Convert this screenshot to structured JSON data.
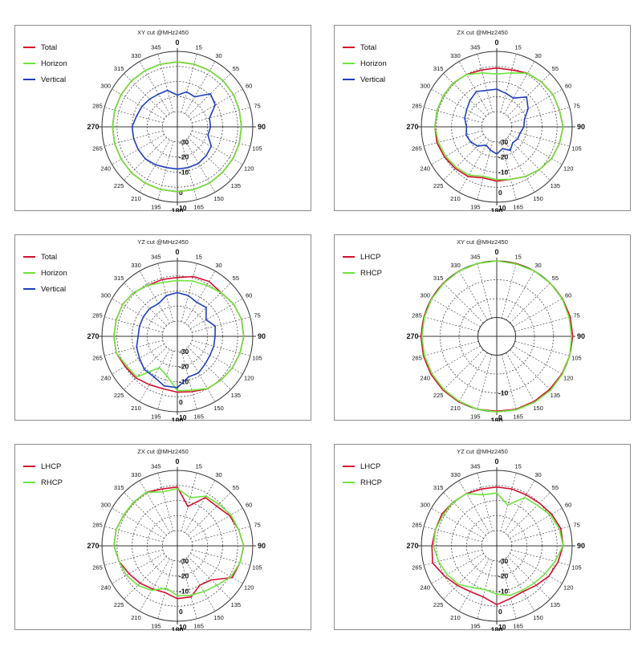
{
  "colors": {
    "red": "#d40f2e",
    "green": "#6ee43c",
    "blue": "#1f3fbf",
    "grid": "#333333"
  },
  "chart_data": [
    {
      "type": "polar",
      "title": "XY cut @MHz2450",
      "theta_labels": [
        "0",
        "15",
        "30",
        "55",
        "60",
        "75",
        "90",
        "105",
        "120",
        "135",
        "150",
        "165",
        "180",
        "195",
        "210",
        "225",
        "240",
        "265",
        "270",
        "285",
        "300",
        "315",
        "330",
        "345"
      ],
      "r_labels": [
        "-30",
        "-20",
        "-10",
        "0",
        "10"
      ],
      "series": [
        {
          "name": "Total",
          "color": "red",
          "values": [
            3,
            3,
            3,
            3,
            3,
            2.5,
            2.5,
            2.5,
            2.5,
            2.5,
            3,
            3,
            3,
            3,
            3,
            3,
            3,
            3,
            3,
            3,
            3,
            3,
            3,
            3
          ]
        },
        {
          "name": "Horizon",
          "color": "green",
          "values": [
            3,
            3,
            3,
            3,
            3,
            2.5,
            2.5,
            2.5,
            2.5,
            2.5,
            3,
            3,
            3,
            3,
            3,
            3,
            3,
            3,
            3,
            3,
            3,
            3,
            3,
            3
          ]
        },
        {
          "name": "Vertical",
          "color": "blue",
          "values": [
            -19,
            -16,
            -17,
            -9,
            -11,
            -18,
            -18,
            -19,
            -14,
            -13,
            -12,
            -12,
            -12,
            -12,
            -11,
            -10,
            -10,
            -10,
            -10,
            -12,
            -13,
            -14,
            -15,
            -15
          ]
        }
      ]
    },
    {
      "type": "polar",
      "title": "ZX cut @MHz2450",
      "theta_labels": [
        "0",
        "15",
        "30",
        "55",
        "60",
        "75",
        "90",
        "105",
        "120",
        "135",
        "150",
        "165",
        "180",
        "195",
        "210",
        "225",
        "240",
        "265",
        "270",
        "285",
        "300",
        "315",
        "330",
        "345"
      ],
      "r_labels": [
        "-30",
        "-20",
        "-10",
        "0",
        "10"
      ],
      "series": [
        {
          "name": "Total",
          "color": "red",
          "values": [
            -1,
            -1,
            1,
            2,
            3,
            3,
            4,
            3,
            2,
            0,
            -2,
            -4,
            -4,
            -5,
            -2,
            -1,
            0,
            1,
            1,
            1,
            1,
            1,
            0,
            -1
          ]
        },
        {
          "name": "Horizon",
          "color": "green",
          "values": [
            -5,
            -3,
            1,
            2,
            3,
            3,
            4,
            3,
            2,
            0,
            -2,
            -4,
            -5,
            -6,
            -3,
            -2,
            -1,
            0,
            1,
            1,
            1,
            1,
            0,
            -3
          ]
        },
        {
          "name": "Vertical",
          "color": "blue",
          "values": [
            -15,
            -17,
            -18,
            -12,
            -16,
            -21,
            -22,
            -24,
            -24,
            -25,
            -22,
            -25,
            -22,
            -24,
            -26,
            -22,
            -20,
            -19,
            -20,
            -18,
            -17,
            -15,
            -13,
            -15
          ]
        }
      ]
    },
    {
      "type": "polar",
      "title": "YZ cut @MHz2450",
      "theta_labels": [
        "0",
        "15",
        "30",
        "55",
        "60",
        "75",
        "90",
        "105",
        "120",
        "135",
        "150",
        "165",
        "180",
        "195",
        "210",
        "225",
        "240",
        "265",
        "270",
        "285",
        "300",
        "315",
        "330",
        "345"
      ],
      "r_labels": [
        "-30",
        "-20",
        "-10",
        "0",
        "10"
      ],
      "series": [
        {
          "name": "Total",
          "color": "red",
          "values": [
            -1,
            1,
            2,
            1,
            3,
            4,
            4,
            3,
            2,
            1,
            0,
            -2,
            -3,
            -4,
            -3,
            -1,
            0,
            2,
            2,
            2,
            2,
            1,
            -1,
            -1
          ]
        },
        {
          "name": "Horizon",
          "color": "green",
          "values": [
            -3,
            -2,
            -1,
            1,
            3,
            4,
            4,
            3,
            2,
            1,
            0,
            -3,
            -4,
            -13,
            -16,
            -2,
            -1,
            2,
            2,
            2,
            2,
            1,
            -1,
            -3
          ]
        },
        {
          "name": "Vertical",
          "color": "blue",
          "values": [
            -11,
            -12,
            -14,
            -13,
            -18,
            -14,
            -15,
            -15,
            -15,
            -14,
            -12,
            -12,
            -6,
            -6,
            -9,
            -9,
            -11,
            -12,
            -14,
            -14,
            -14,
            -14,
            -15,
            -12
          ]
        }
      ]
    },
    {
      "type": "polar",
      "title": "XY cut @MHz2450",
      "theta_labels": [
        "0",
        "15",
        "30",
        "55",
        "60",
        "75",
        "90",
        "105",
        "120",
        "135",
        "150",
        "165",
        "180",
        "195",
        "210",
        "225",
        "240",
        "265",
        "270",
        "285",
        "300",
        "315",
        "330",
        "345"
      ],
      "r_labels": [
        "-10",
        "0"
      ],
      "series": [
        {
          "name": "LHCP",
          "color": "red",
          "values": [
            0.0,
            0.0,
            0.0,
            0.0,
            0.2,
            0.3,
            0.3,
            0.0,
            -0.1,
            -0.3,
            -0.2,
            0.0,
            -0.3,
            0.0,
            0.2,
            0.3,
            0.3,
            0.2,
            0.2,
            0.0,
            0.0,
            0.0,
            0.0,
            0.0
          ]
        },
        {
          "name": "RHCP",
          "color": "green",
          "values": [
            0.0,
            -0.3,
            0.0,
            0.0,
            0.0,
            -0.3,
            -0.3,
            0.0,
            0.2,
            0.4,
            0.3,
            0.3,
            0.1,
            0.0,
            -0.2,
            -0.2,
            -0.3,
            -0.3,
            -0.3,
            -0.3,
            -0.2,
            -0.2,
            0.0,
            0.0
          ]
        }
      ]
    },
    {
      "type": "polar",
      "title": "ZX cut @MHz2450",
      "theta_labels": [
        "0",
        "15",
        "30",
        "55",
        "60",
        "75",
        "90",
        "105",
        "120",
        "135",
        "150",
        "165",
        "180",
        "195",
        "210",
        "225",
        "240",
        "265",
        "270",
        "285",
        "300",
        "315",
        "330",
        "345"
      ],
      "r_labels": [
        "-30",
        "-20",
        "-10",
        "0",
        "10"
      ],
      "series": [
        {
          "name": "LHCP",
          "color": "red",
          "values": [
            -1,
            -13,
            -3,
            -3,
            0,
            2,
            4,
            3,
            2,
            -8,
            -10,
            -5,
            -5,
            -8,
            -7,
            -5,
            -3,
            0,
            2,
            2,
            1,
            1,
            1,
            -1
          ]
        },
        {
          "name": "RHCP",
          "color": "green",
          "values": [
            -2,
            -7,
            -2,
            -1,
            1,
            2,
            4,
            3,
            1,
            -3,
            -5,
            -6,
            -7,
            -11,
            -6,
            -3,
            -1,
            0,
            2,
            2,
            1,
            1,
            1,
            -3
          ]
        }
      ]
    },
    {
      "type": "polar",
      "title": "YZ cut @MHz2450",
      "theta_labels": [
        "0",
        "15",
        "30",
        "55",
        "60",
        "75",
        "90",
        "105",
        "120",
        "135",
        "150",
        "165",
        "180",
        "195",
        "210",
        "225",
        "240",
        "265",
        "270",
        "285",
        "300",
        "315",
        "330",
        "345"
      ],
      "r_labels": [
        "-30",
        "-20",
        "-10",
        "0",
        "10"
      ],
      "series": [
        {
          "name": "LHCP",
          "color": "red",
          "values": [
            -1,
            -1,
            -1,
            0,
            2,
            4,
            4,
            2,
            0,
            -3,
            -5,
            -4,
            -1,
            -5,
            -5,
            -3,
            0,
            4,
            3,
            2,
            2,
            1,
            0,
            -1
          ]
        },
        {
          "name": "RHCP",
          "color": "green",
          "values": [
            -5,
            -12,
            -3,
            -2,
            1,
            3,
            4,
            0,
            -3,
            -5,
            -6,
            -6,
            -8,
            -10,
            -8,
            -4,
            -2,
            0,
            2,
            2,
            1,
            1,
            0,
            -5
          ]
        }
      ]
    }
  ]
}
